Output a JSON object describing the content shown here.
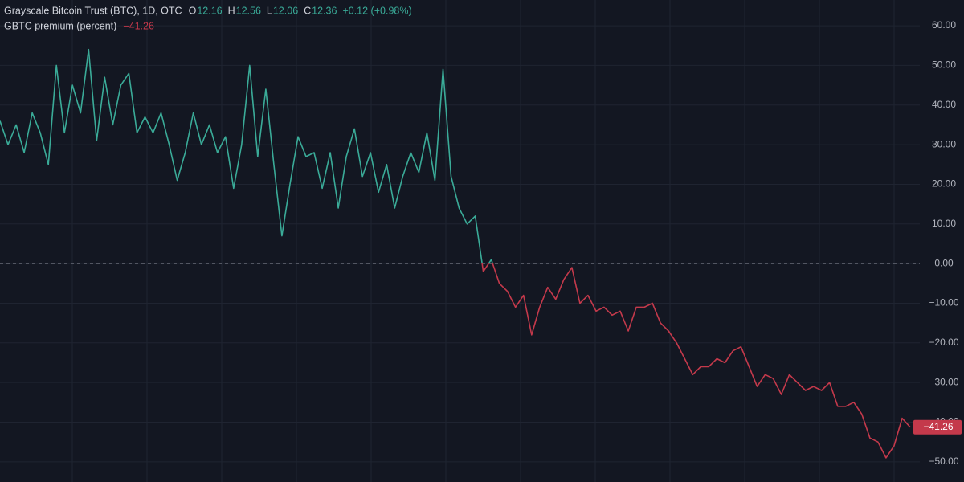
{
  "chart_data": {
    "type": "line",
    "title": "Grayscale Bitcoin Trust (BTC), 1D, OTC",
    "ohlc": [
      {
        "label": "O",
        "value": 12.16
      },
      {
        "label": "H",
        "value": 12.56
      },
      {
        "label": "L",
        "value": 12.06
      },
      {
        "label": "C",
        "value": 12.36
      }
    ],
    "change": "+0.12 (+0.98%)",
    "series": [
      {
        "name": "GBTC premium (percent)",
        "color": "#3aab98",
        "negative_color": "#c4394b",
        "values": [
          36,
          30,
          35,
          28,
          38,
          33,
          25,
          50,
          33,
          45,
          38,
          54,
          31,
          47,
          35,
          45,
          48,
          33,
          37,
          33,
          38,
          30,
          21,
          28,
          38,
          30,
          35,
          28,
          32,
          19,
          30,
          50,
          27,
          44,
          25,
          7,
          20,
          32,
          27,
          28,
          19,
          28,
          14,
          27,
          34,
          22,
          28,
          18,
          25,
          14,
          22,
          28,
          23,
          33,
          21,
          49,
          22,
          14,
          10,
          12,
          -2,
          1,
          -5,
          -7,
          -11,
          -8,
          -18,
          -11,
          -6,
          -9,
          -4,
          -1,
          -10,
          -8,
          -12,
          -11,
          -13,
          -12,
          -17,
          -11,
          -11,
          -10,
          -15,
          -17,
          -20,
          -24,
          -28,
          -26,
          -26,
          -24,
          -25,
          -22,
          -21,
          -26,
          -31,
          -28,
          -29,
          -33,
          -28,
          -30,
          -32,
          -31,
          -32,
          -30,
          -36,
          -36,
          -35,
          -38,
          -44,
          -45,
          -49,
          -46,
          -39,
          -41.26
        ]
      }
    ],
    "last_value": {
      "value": -41.26,
      "label": "−41.26"
    },
    "ylim": [
      -55.1,
      66.5
    ],
    "yticks": [
      {
        "value": 60,
        "label": "60.00"
      },
      {
        "value": 50,
        "label": "50.00"
      },
      {
        "value": 40,
        "label": "40.00"
      },
      {
        "value": 30,
        "label": "30.00"
      },
      {
        "value": 20,
        "label": "20.00"
      },
      {
        "value": 10,
        "label": "10.00"
      },
      {
        "value": 0,
        "label": "0.00"
      },
      {
        "value": -10,
        "label": "−10.00"
      },
      {
        "value": -20,
        "label": "−20.00"
      },
      {
        "value": -30,
        "label": "−30.00"
      },
      {
        "value": -40,
        "label": "−40.00"
      },
      {
        "value": -50,
        "label": "−50.00"
      }
    ],
    "grid": true,
    "zero_line": true
  }
}
